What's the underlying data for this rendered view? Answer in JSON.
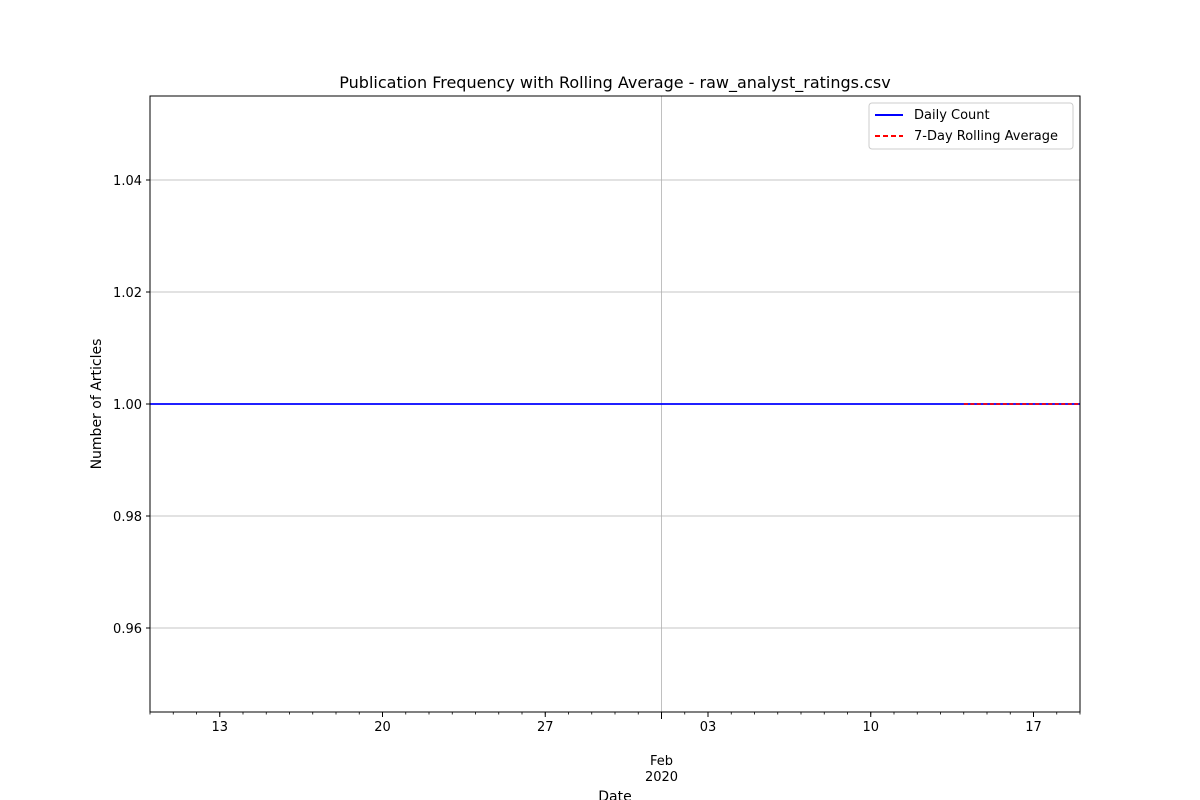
{
  "chart_data": {
    "type": "line",
    "title": "Publication Frequency with Rolling Average - raw_analyst_ratings.csv",
    "xlabel": "Date",
    "ylabel": "Number of Articles",
    "x_scale": "date",
    "xlim": [
      "2020-01-10",
      "2020-02-19"
    ],
    "ylim": [
      0.945,
      1.055
    ],
    "grid": true,
    "legend_position": "top-right",
    "x_major_ticks": [
      {
        "date": "2020-01-13",
        "label": "13"
      },
      {
        "date": "2020-01-20",
        "label": "20"
      },
      {
        "date": "2020-01-27",
        "label": "27"
      },
      {
        "date": "2020-02-01",
        "label": ""
      },
      {
        "date": "2020-02-03",
        "label": "03"
      },
      {
        "date": "2020-02-10",
        "label": "10"
      },
      {
        "date": "2020-02-17",
        "label": "17"
      }
    ],
    "x_sublabel": {
      "date": "2020-02-01",
      "line1": "Feb",
      "line2": "2020"
    },
    "y_ticks": [
      0.96,
      0.98,
      1.0,
      1.02,
      1.04
    ],
    "y_tick_labels": [
      "0.96",
      "0.98",
      "1.00",
      "1.02",
      "1.04"
    ],
    "series": [
      {
        "name": "Daily Count",
        "color": "#0000ff",
        "style": "solid",
        "x": [
          "2020-01-10",
          "2020-02-19"
        ],
        "y": [
          1,
          1
        ]
      },
      {
        "name": "7-Day Rolling Average",
        "color": "#ff0000",
        "style": "dashed",
        "x": [
          "2020-02-14",
          "2020-02-19"
        ],
        "y": [
          1,
          1
        ]
      }
    ]
  }
}
